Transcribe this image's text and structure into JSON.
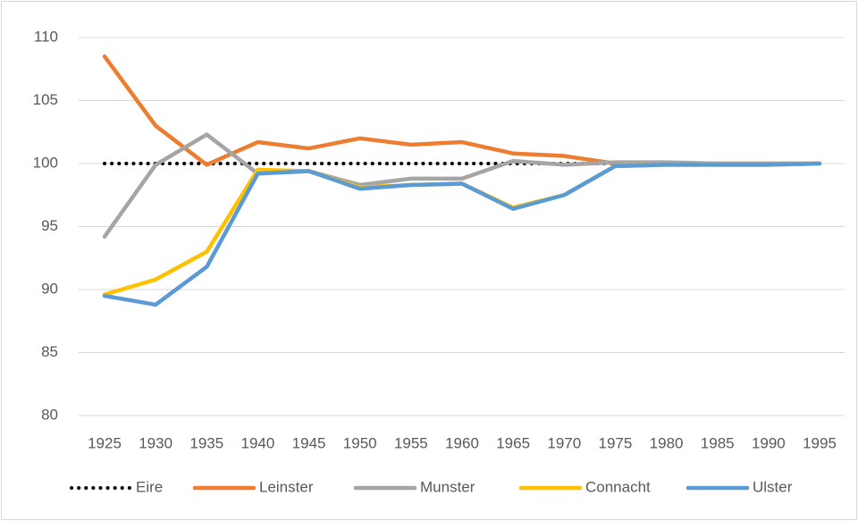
{
  "chart_data": {
    "type": "line",
    "categories": [
      "1925",
      "1930",
      "1935",
      "1940",
      "1945",
      "1950",
      "1955",
      "1960",
      "1965",
      "1970",
      "1975",
      "1980",
      "1985",
      "1990",
      "1995"
    ],
    "series": [
      {
        "name": "Eire",
        "color": "#000000",
        "style": "dotted",
        "values": [
          100,
          100,
          100,
          100,
          100,
          100,
          100,
          100,
          100,
          100,
          100,
          100,
          100,
          100,
          100
        ]
      },
      {
        "name": "Leinster",
        "color": "#ed7d31",
        "style": "solid",
        "values": [
          108.5,
          103,
          99.9,
          101.7,
          101.2,
          102,
          101.5,
          101.7,
          100.8,
          100.6,
          100,
          100,
          100,
          100,
          100
        ]
      },
      {
        "name": "Munster",
        "color": "#a5a5a5",
        "style": "solid",
        "values": [
          94.2,
          99.9,
          102.3,
          99.2,
          99.4,
          98.3,
          98.8,
          98.8,
          100.2,
          99.9,
          100.1,
          100.1,
          100,
          100,
          100
        ]
      },
      {
        "name": "Connacht",
        "color": "#ffc000",
        "style": "solid",
        "values": [
          89.6,
          90.8,
          93,
          99.5,
          99.4,
          98.1,
          98.3,
          98.4,
          96.5,
          97.5,
          99.8,
          99.9,
          99.9,
          99.9,
          100
        ]
      },
      {
        "name": "Ulster",
        "color": "#5b9bd5",
        "style": "solid",
        "values": [
          89.5,
          88.8,
          91.8,
          99.2,
          99.4,
          98,
          98.3,
          98.4,
          96.4,
          97.5,
          99.8,
          99.9,
          99.9,
          99.9,
          100
        ]
      }
    ],
    "ylim": [
      80,
      110
    ],
    "yticks": [
      80,
      85,
      90,
      95,
      100,
      105,
      110
    ],
    "grid": true,
    "legend": "bottom"
  }
}
